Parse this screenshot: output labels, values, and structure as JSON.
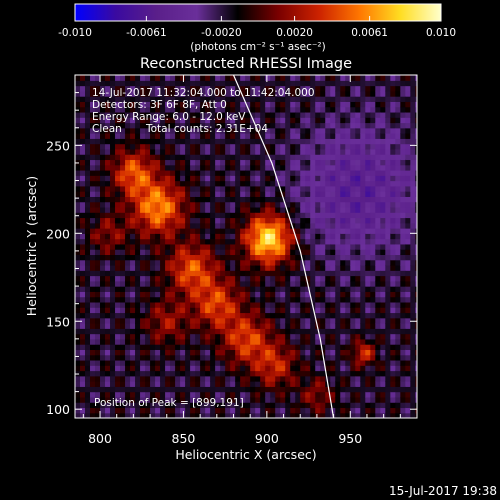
{
  "chart_data": {
    "type": "heatmap",
    "title": "Reconstructed RHESSI Image",
    "xlabel": "Heliocentric X (arcsec)",
    "ylabel": "Heliocentric Y (arcsec)",
    "xlim": [
      785,
      990
    ],
    "ylim": [
      95,
      290
    ],
    "xticks": [
      800,
      850,
      900,
      950
    ],
    "yticks": [
      100,
      150,
      200,
      250
    ],
    "colorbar": {
      "ticks": [
        "-0.010",
        "-0.0061",
        "-0.0020",
        "0.0020",
        "0.0061",
        "0.010"
      ],
      "tick_values": [
        -0.01,
        -0.0061,
        -0.002,
        0.002,
        0.0061,
        0.01
      ],
      "range": [
        -0.01,
        0.01
      ],
      "units_label": "(photons cm⁻² s⁻¹ asec⁻²)",
      "colors": [
        "#0000ff",
        "#3a0aa0",
        "#5a1f8a",
        "#6a2f9a",
        "#000000",
        "#7a0000",
        "#cc2200",
        "#ff7700",
        "#ffdd22",
        "#ffffcc"
      ]
    },
    "annotations": {
      "time_range": "14-Jul-2017 11:32:04.000 to 11:42:04.000",
      "detectors": "Detectors: 3F 6F 8F, Att 0",
      "energy": "Energy Range: 6.0 - 12.0 keV",
      "method": "Clean",
      "counts": "Total counts: 2.31E+04",
      "peak": "Position of Peak = [899,191]"
    },
    "peak_position": [
      899,
      191
    ],
    "limb_line": [
      [
        880,
        290
      ],
      [
        903,
        240
      ],
      [
        920,
        190
      ],
      [
        932,
        140
      ],
      [
        940,
        95
      ]
    ],
    "sources": [
      {
        "x": 901,
        "y": 197,
        "amplitude": 0.01,
        "sigma": 10
      },
      {
        "x": 835,
        "y": 215,
        "amplitude": 0.0075,
        "sigma": 11
      },
      {
        "x": 820,
        "y": 235,
        "amplitude": 0.006,
        "sigma": 9
      },
      {
        "x": 855,
        "y": 180,
        "amplitude": 0.006,
        "sigma": 10
      },
      {
        "x": 870,
        "y": 160,
        "amplitude": 0.0055,
        "sigma": 10
      },
      {
        "x": 888,
        "y": 140,
        "amplitude": 0.0055,
        "sigma": 10
      },
      {
        "x": 905,
        "y": 125,
        "amplitude": 0.0045,
        "sigma": 9
      },
      {
        "x": 840,
        "y": 150,
        "amplitude": 0.0035,
        "sigma": 9
      },
      {
        "x": 958,
        "y": 132,
        "amplitude": 0.005,
        "sigma": 5
      },
      {
        "x": 805,
        "y": 200,
        "amplitude": 0.003,
        "sigma": 8
      },
      {
        "x": 930,
        "y": 108,
        "amplitude": 0.003,
        "sigma": 7
      }
    ],
    "negative_region": {
      "x": 955,
      "y": 225,
      "amplitude": -0.004,
      "sigma": 25
    }
  },
  "footer": {
    "date": "15-Jul-2017 19:38"
  }
}
